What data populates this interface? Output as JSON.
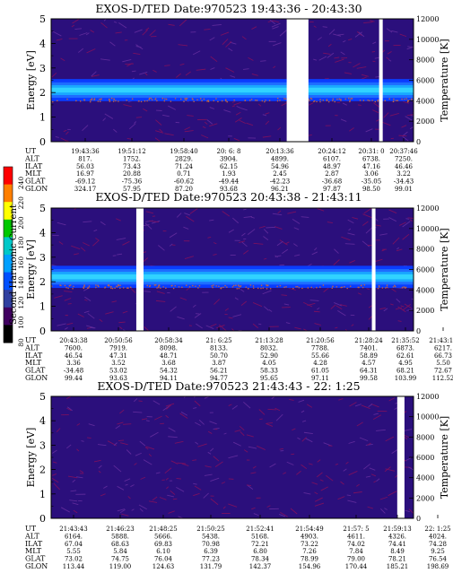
{
  "colorbar": {
    "label": "Second Harmonic Current",
    "ticks": [
      "240",
      "220",
      "200",
      "180",
      "160",
      "140",
      "120",
      "100",
      "80"
    ],
    "colors": [
      "#ff0000",
      "#ff7f00",
      "#ffff00",
      "#00c800",
      "#00c8c8",
      "#00a0ff",
      "#0050ff",
      "#3040a0",
      "#400060",
      "#000000"
    ]
  },
  "chart_data": [
    {
      "type": "heatmap",
      "title": "EXOS-D/TED   Date:970523  19:43:36 - 20:43:30",
      "ylabel": "Energy [eV]",
      "y2label": "Temperature [K]",
      "ylim": [
        0,
        5
      ],
      "y2lim": [
        0,
        12000
      ],
      "yticks": [
        "0",
        "1",
        "2",
        "3",
        "4",
        "5"
      ],
      "y2ticks": [
        "0",
        "2000",
        "4000",
        "6000",
        "8000",
        "10000",
        "12000"
      ],
      "gaps": [
        [
          0.65,
          0.71
        ],
        [
          0.905,
          0.915
        ]
      ],
      "band": {
        "center_eV": 2.1,
        "width_eV": 0.9
      },
      "orbit": {
        "rows": [
          "UT",
          "ALT",
          "ILAT",
          "MLT",
          "GLAT",
          "GLON"
        ],
        "columns": [
          [
            "19:43:36",
            "817.",
            "56.03",
            "16.97",
            "-69.12",
            "324.17"
          ],
          [
            "19:51:12",
            "1752.",
            "73.43",
            "20.88",
            "-75.36",
            "57.95"
          ],
          [
            "19:58:40",
            "2829.",
            "71.24",
            "0.71",
            "-60.62",
            "87.20"
          ],
          [
            "20: 6: 8",
            "3904.",
            "62.15",
            "1.93",
            "-49.44",
            "93.68"
          ],
          [
            "20:13:36",
            "4899.",
            "54.96",
            "2.45",
            "-42.23",
            "96.21"
          ],
          [
            "20:24:12",
            "6107.",
            "48.97",
            "2.87",
            "-36.68",
            "97.87"
          ],
          [
            "20:31: 0",
            "6738.",
            "47.16",
            "3.06",
            "-35.05",
            "98.50"
          ],
          [
            "20:37:46",
            "7250.",
            "46.46",
            "3.22",
            "-34.43",
            "99.01"
          ]
        ]
      }
    },
    {
      "type": "heatmap",
      "title": "EXOS-D/TED   Date:970523  20:43:38 - 21:43:11",
      "ylabel": "Energy [eV]",
      "y2label": "Temperature [K]",
      "ylim": [
        0,
        5
      ],
      "y2lim": [
        0,
        12000
      ],
      "yticks": [
        "0",
        "1",
        "2",
        "3",
        "4",
        "5"
      ],
      "y2ticks": [
        "0",
        "2000",
        "4000",
        "6000",
        "8000",
        "10000",
        "12000"
      ],
      "gaps": [
        [
          0.235,
          0.255
        ],
        [
          0.885,
          0.895
        ]
      ],
      "band": {
        "center_eV": 2.2,
        "width_eV": 0.9
      },
      "orbit": {
        "rows": [
          "UT",
          "ALT",
          "ILAT",
          "MLT",
          "GLAT",
          "GLON"
        ],
        "columns": [
          [
            "20:43:38",
            "7600.",
            "46.54",
            "3.36",
            "-34.48",
            "99.44"
          ],
          [
            "20:50:56",
            "7919.",
            "47.31",
            "3.52",
            "53.02",
            "93.63"
          ],
          [
            "20:58:34",
            "8098.",
            "48.71",
            "3.68",
            "54.32",
            "94.11"
          ],
          [
            "21: 6:25",
            "8133.",
            "50.70",
            "3.87",
            "56.21",
            "94.77"
          ],
          [
            "21:13:28",
            "8032.",
            "52.90",
            "4.05",
            "58.33",
            "95.65"
          ],
          [
            "21:20:56",
            "7788.",
            "55.66",
            "4.28",
            "61.05",
            "97.11"
          ],
          [
            "21:28:24",
            "7401.",
            "58.89",
            "4.57",
            "64.31",
            "99.58"
          ],
          [
            "21:35:52",
            "6873.",
            "62.61",
            "4.95",
            "68.21",
            "103.99"
          ],
          [
            "21:43:11",
            "6217.",
            "66.73",
            "5.50",
            "72.67",
            "112.52"
          ]
        ]
      }
    },
    {
      "type": "heatmap",
      "title": "EXOS-D/TED   Date:970523  21:43:43 - 22: 1:25",
      "ylabel": "Energy [eV]",
      "y2label": "Temperature [K]",
      "ylim": [
        0,
        5
      ],
      "y2lim": [
        0,
        12000
      ],
      "yticks": [
        "0",
        "1",
        "2",
        "3",
        "4",
        "5"
      ],
      "y2ticks": [
        "0",
        "2000",
        "4000",
        "6000",
        "8000",
        "10000",
        "12000"
      ],
      "gaps": [
        [
          0.955,
          0.975
        ]
      ],
      "band": null,
      "orbit": {
        "rows": [
          "UT",
          "ALT",
          "ILAT",
          "MLT",
          "GLAT",
          "GLON"
        ],
        "columns": [
          [
            "21:43:43",
            "6164.",
            "67.04",
            "5.55",
            "73.02",
            "113.44"
          ],
          [
            "21:46:23",
            "5888.",
            "68.63",
            "5.84",
            "74.75",
            "119.00"
          ],
          [
            "21:48:25",
            "5666.",
            "69.83",
            "6.10",
            "76.04",
            "124.63"
          ],
          [
            "21:50:25",
            "5438.",
            "70.98",
            "6.39",
            "77.23",
            "131.79"
          ],
          [
            "21:52:41",
            "5168.",
            "72.21",
            "6.80",
            "78.34",
            "142.37"
          ],
          [
            "21:54:49",
            "4903.",
            "73.22",
            "7.26",
            "78.99",
            "154.96"
          ],
          [
            "21:57: 5",
            "4611.",
            "74.02",
            "7.84",
            "79.00",
            "170.44"
          ],
          [
            "21:59:13",
            "4326.",
            "74.41",
            "8.49",
            "78.21",
            "185.21"
          ],
          [
            "22: 1:25",
            "4024.",
            "74.28",
            "9.25",
            "76.54",
            "198.69"
          ]
        ]
      }
    }
  ]
}
